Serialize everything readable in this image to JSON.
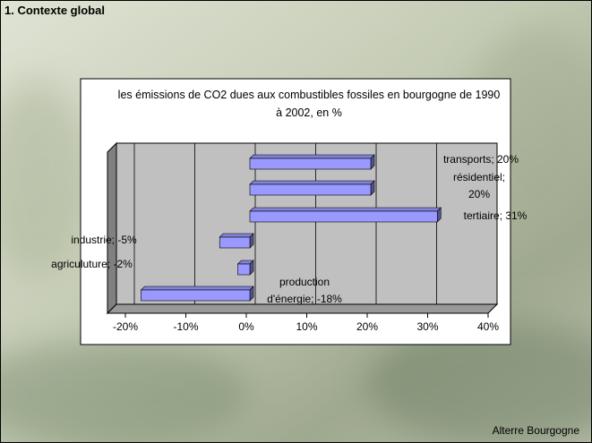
{
  "slide_title": "1. Contexte global",
  "footer": "Alterre Bourgogne",
  "chart_data": {
    "type": "bar",
    "orientation": "horizontal",
    "title": "les émissions de CO2 dues aux combustibles fossiles en bourgogne de 1990 à 2002, en %",
    "values": [
      20,
      20,
      31,
      -5,
      -2,
      -18
    ],
    "value_labels": [
      "transports; 20%",
      "résidentiel; 20%",
      "tertiaire; 31%",
      "industrie; -5%",
      "agriculuture; -2%",
      "production d'énergie; -18%"
    ],
    "color": "#9999ff",
    "xlim": [
      -20,
      40
    ],
    "xticks": [
      {
        "value": -20,
        "label": "-20%"
      },
      {
        "value": -10,
        "label": "-10%"
      },
      {
        "value": 0,
        "label": "0%"
      },
      {
        "value": 10,
        "label": "10%"
      },
      {
        "value": 20,
        "label": "20%"
      },
      {
        "value": 30,
        "label": "30%"
      },
      {
        "value": 40,
        "label": "40%"
      }
    ],
    "grid": true
  }
}
